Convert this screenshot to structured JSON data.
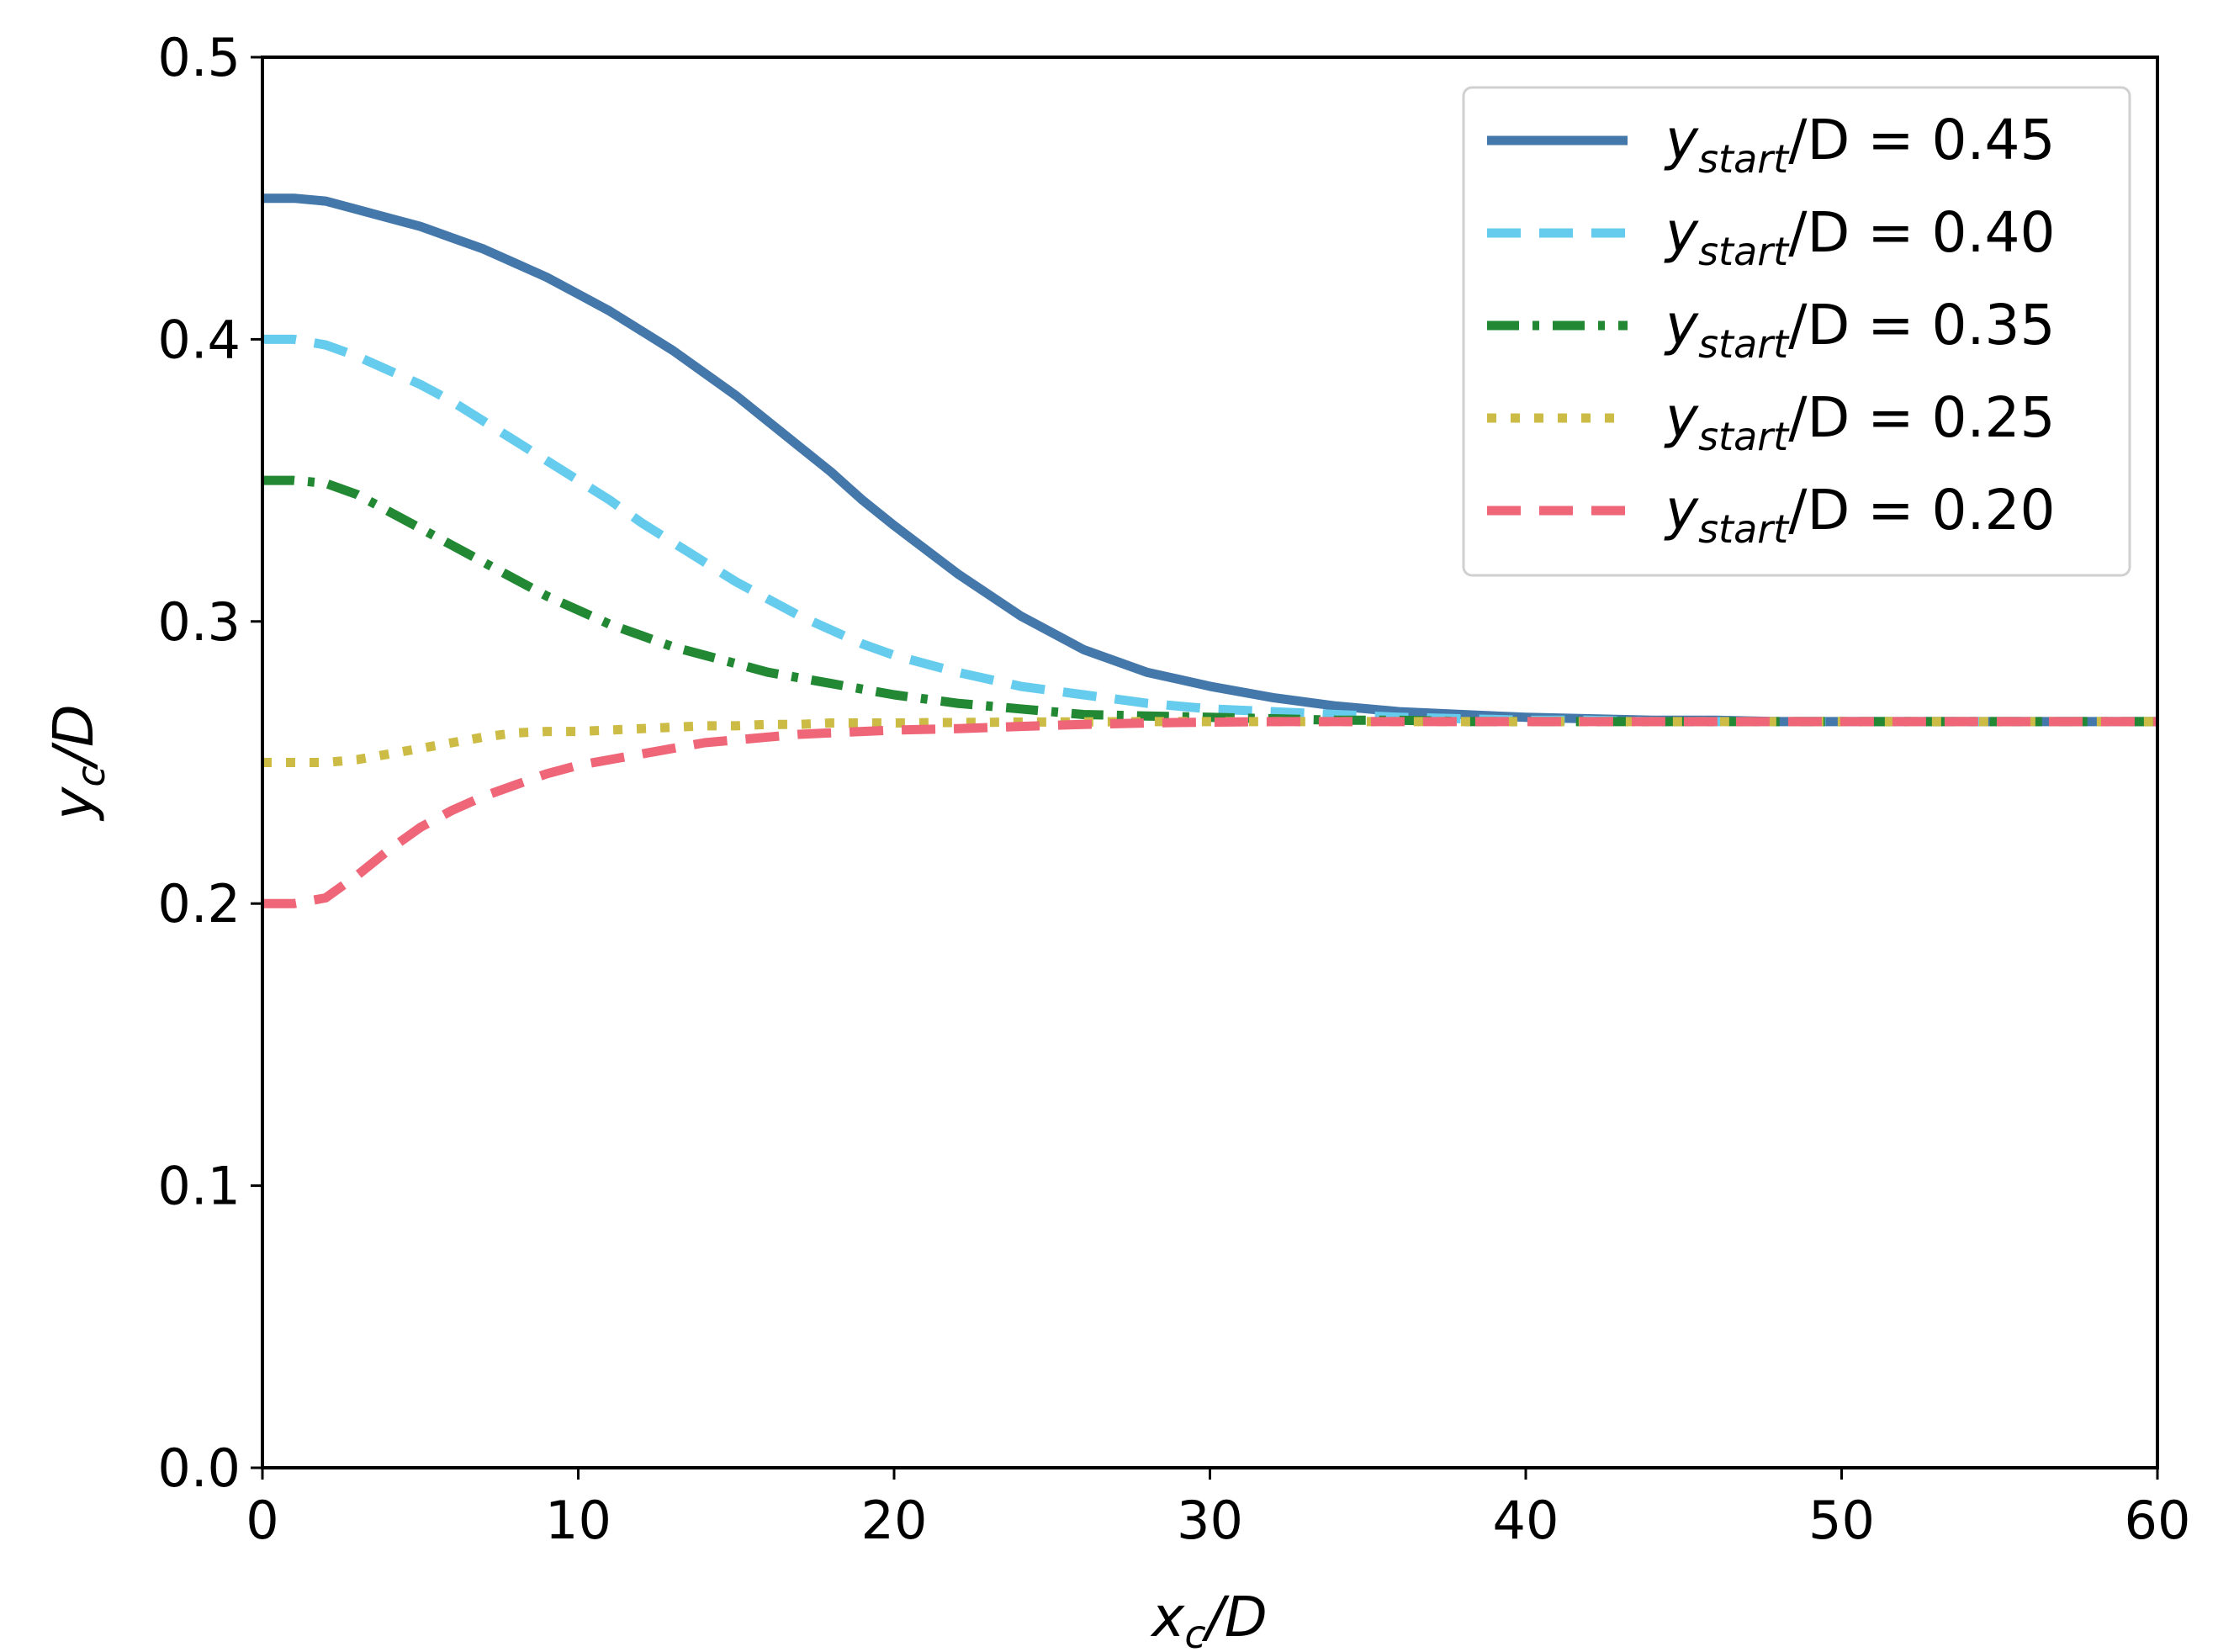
{
  "chart_data": {
    "type": "line",
    "title": "",
    "xlabel": {
      "base": "x",
      "sub": "c",
      "rest": "/D"
    },
    "ylabel": {
      "base": "y",
      "sub": "c",
      "rest": "/D"
    },
    "xlim": [
      0,
      60
    ],
    "ylim": [
      0,
      0.5
    ],
    "xticks": [
      0,
      10,
      20,
      30,
      40,
      50,
      60
    ],
    "xtick_labels": [
      "0",
      "10",
      "20",
      "30",
      "40",
      "50",
      "60"
    ],
    "yticks": [
      0,
      0.1,
      0.2,
      0.3,
      0.4,
      0.5
    ],
    "ytick_labels": [
      "0.0",
      "0.1",
      "0.2",
      "0.3",
      "0.4",
      "0.5"
    ],
    "grid": false,
    "legend_position": "top-right",
    "x": [
      0,
      1,
      2,
      3,
      4,
      5,
      6,
      7,
      8,
      9,
      10,
      11,
      12,
      13,
      14,
      15,
      16,
      17,
      18,
      19,
      20,
      22,
      24,
      26,
      28,
      30,
      32,
      34,
      36,
      38,
      40,
      42,
      44,
      46,
      48,
      50,
      52,
      54,
      56,
      58,
      60
    ],
    "series": [
      {
        "name": "ystart/D = 0.45",
        "legend": {
          "base": "y",
          "sub": "start",
          "rest": "/D = 0.45"
        },
        "color": "#4477aa",
        "style": "solid",
        "values": [
          0.45,
          0.45,
          0.449,
          0.446,
          0.443,
          0.44,
          0.436,
          0.432,
          0.427,
          0.422,
          0.416,
          0.41,
          0.403,
          0.396,
          0.388,
          0.38,
          0.371,
          0.362,
          0.353,
          0.343,
          0.334,
          0.317,
          0.302,
          0.29,
          0.282,
          0.277,
          0.273,
          0.27,
          0.268,
          0.267,
          0.266,
          0.2655,
          0.265,
          0.265,
          0.2645,
          0.2645,
          0.2645,
          0.2645,
          0.2645,
          0.2645,
          0.2645
        ]
      },
      {
        "name": "ystart/D = 0.40",
        "legend": {
          "base": "y",
          "sub": "start",
          "rest": "/D = 0.40"
        },
        "color": "#66ccee",
        "style": "dashed",
        "values": [
          0.4,
          0.4,
          0.398,
          0.394,
          0.389,
          0.384,
          0.378,
          0.371,
          0.364,
          0.357,
          0.35,
          0.343,
          0.335,
          0.328,
          0.321,
          0.314,
          0.308,
          0.302,
          0.297,
          0.292,
          0.288,
          0.282,
          0.277,
          0.274,
          0.271,
          0.269,
          0.268,
          0.267,
          0.266,
          0.2655,
          0.265,
          0.265,
          0.2645,
          0.2645,
          0.2645,
          0.2645,
          0.2645,
          0.2645,
          0.2645,
          0.2645,
          0.2645
        ]
      },
      {
        "name": "ystart/D = 0.35",
        "legend": {
          "base": "y",
          "sub": "start",
          "rest": "/D = 0.35"
        },
        "color": "#228833",
        "style": "dashdot",
        "values": [
          0.35,
          0.35,
          0.349,
          0.345,
          0.339,
          0.333,
          0.327,
          0.321,
          0.315,
          0.309,
          0.304,
          0.299,
          0.295,
          0.291,
          0.288,
          0.285,
          0.282,
          0.28,
          0.278,
          0.276,
          0.274,
          0.271,
          0.269,
          0.267,
          0.2665,
          0.266,
          0.2655,
          0.265,
          0.265,
          0.2645,
          0.2645,
          0.2645,
          0.2645,
          0.2645,
          0.2645,
          0.2645,
          0.2645,
          0.2645,
          0.2645,
          0.2645,
          0.2645
        ]
      },
      {
        "name": "ystart/D = 0.25",
        "legend": {
          "base": "y",
          "sub": "start",
          "rest": "/D = 0.25"
        },
        "color": "#ccbb44",
        "style": "dotted",
        "values": [
          0.25,
          0.25,
          0.25,
          0.251,
          0.253,
          0.255,
          0.257,
          0.259,
          0.2605,
          0.261,
          0.261,
          0.2615,
          0.262,
          0.2625,
          0.263,
          0.263,
          0.2635,
          0.2635,
          0.264,
          0.264,
          0.264,
          0.2642,
          0.2643,
          0.2644,
          0.2645,
          0.2645,
          0.2645,
          0.2645,
          0.2645,
          0.2645,
          0.2645,
          0.2645,
          0.2645,
          0.2645,
          0.2645,
          0.2645,
          0.2645,
          0.2645,
          0.2645,
          0.2645,
          0.2645
        ]
      },
      {
        "name": "ystart/D = 0.20",
        "legend": {
          "base": "y",
          "sub": "start",
          "rest": "/D = 0.20"
        },
        "color": "#ee6677",
        "style": "dashed",
        "values": [
          0.2,
          0.2,
          0.202,
          0.21,
          0.219,
          0.227,
          0.233,
          0.238,
          0.242,
          0.246,
          0.249,
          0.251,
          0.253,
          0.255,
          0.257,
          0.258,
          0.259,
          0.26,
          0.2605,
          0.261,
          0.2615,
          0.262,
          0.2628,
          0.2635,
          0.264,
          0.2643,
          0.2645,
          0.2645,
          0.2645,
          0.2645,
          0.2645,
          0.2645,
          0.2645,
          0.2645,
          0.2645,
          0.2645,
          0.2645,
          0.2645,
          0.2645,
          0.2645,
          0.2645
        ]
      }
    ]
  }
}
